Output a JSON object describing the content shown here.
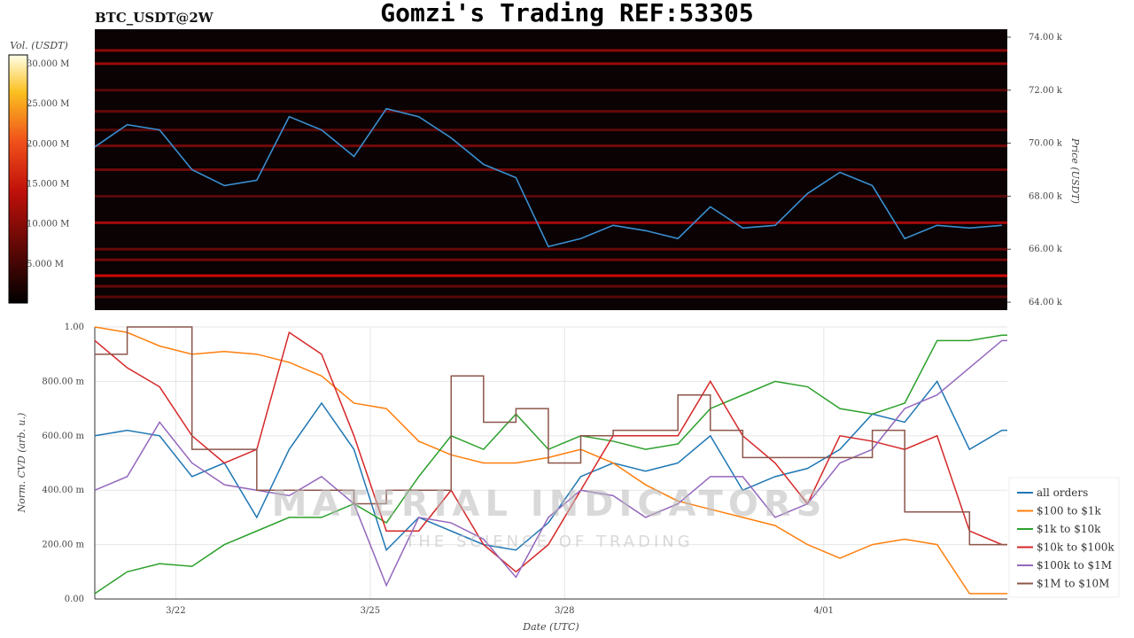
{
  "title": "Gomzi's Trading REF:53305",
  "symbol": "BTC_USDT@2W",
  "watermark": {
    "line1": "MATERIAL INDICATORS",
    "line2": "THE SCIENCE OF TRADING"
  },
  "chart_data": [
    {
      "type": "heatmap",
      "title": "",
      "ylabel": "Price (USDT)",
      "ylim": [
        63.7,
        74.3
      ],
      "y_ticks": [
        "64.00 k",
        "66.00 k",
        "68.00 k",
        "70.00 k",
        "72.00 k",
        "74.00 k"
      ],
      "y_tick_values": [
        64,
        66,
        68,
        70,
        72,
        74
      ],
      "colorbar": {
        "label": "Vol. (USDT)",
        "range": [
          0,
          31
        ],
        "ticks": [
          "5.000 M",
          "10.000 M",
          "15.000 M",
          "20.000 M",
          "25.000 M",
          "30.000 M"
        ],
        "tick_values": [
          5,
          10,
          15,
          20,
          25,
          30
        ]
      },
      "bands": [
        {
          "price": 73.5,
          "volume_M": 8
        },
        {
          "price": 73.0,
          "volume_M": 9
        },
        {
          "price": 72.0,
          "volume_M": 4
        },
        {
          "price": 71.2,
          "volume_M": 5
        },
        {
          "price": 70.5,
          "volume_M": 4
        },
        {
          "price": 69.9,
          "volume_M": 6
        },
        {
          "price": 69.0,
          "volume_M": 6
        },
        {
          "price": 68.0,
          "volume_M": 4
        },
        {
          "price": 67.0,
          "volume_M": 10
        },
        {
          "price": 66.0,
          "volume_M": 5
        },
        {
          "price": 65.6,
          "volume_M": 6
        },
        {
          "price": 65.0,
          "volume_M": 13
        },
        {
          "price": 64.6,
          "volume_M": 5
        },
        {
          "price": 64.2,
          "volume_M": 4
        }
      ],
      "price_series": {
        "x": [
          "2024-03-20 18:00",
          "2024-03-21 06:00",
          "2024-03-21 18:00",
          "2024-03-22 06:00",
          "2024-03-22 18:00",
          "2024-03-23 06:00",
          "2024-03-23 18:00",
          "2024-03-24 06:00",
          "2024-03-24 18:00",
          "2024-03-25 06:00",
          "2024-03-25 18:00",
          "2024-03-26 06:00",
          "2024-03-26 18:00",
          "2024-03-27 06:00",
          "2024-03-27 18:00",
          "2024-03-28 06:00",
          "2024-03-28 18:00",
          "2024-03-29 06:00",
          "2024-03-29 18:00",
          "2024-03-30 06:00",
          "2024-03-30 18:00",
          "2024-03-31 06:00",
          "2024-03-31 18:00",
          "2024-04-01 06:00",
          "2024-04-01 18:00",
          "2024-04-02 06:00",
          "2024-04-02 18:00",
          "2024-04-03 06:00",
          "2024-04-03 18:00"
        ],
        "values": [
          69.86,
          70.7,
          70.5,
          69.0,
          68.4,
          68.6,
          71.0,
          70.5,
          69.5,
          71.3,
          71.0,
          70.2,
          69.2,
          68.7,
          66.1,
          66.4,
          66.9,
          66.7,
          66.4,
          67.6,
          66.8,
          66.9,
          68.1,
          68.9,
          68.4,
          66.4,
          66.9,
          66.8,
          66.9
        ],
        "color": "#3a8fd0"
      }
    },
    {
      "type": "line",
      "title": "",
      "xlabel": "Date (UTC)",
      "ylabel": "Norm. CVD (arb. u.)",
      "ylim": [
        0,
        1
      ],
      "y_ticks": [
        "0.00",
        "200.00 m",
        "400.00 m",
        "600.00 m",
        "800.00 m",
        "1.00"
      ],
      "y_tick_values": [
        0,
        0.2,
        0.4,
        0.6,
        0.8,
        1.0
      ],
      "x_ticks": [
        "3/22",
        "3/25",
        "3/28",
        "4/01"
      ],
      "x_tick_values": [
        "2024-03-22 00:00",
        "2024-03-25 00:00",
        "2024-03-28 00:00",
        "2024-04-01 00:00"
      ],
      "xlim": [
        "2024-03-20 18:00",
        "2024-04-03 20:00"
      ],
      "grid": true,
      "legend": "bottom-right",
      "x": [
        "2024-03-20 18:00",
        "2024-03-21 06:00",
        "2024-03-21 18:00",
        "2024-03-22 06:00",
        "2024-03-22 18:00",
        "2024-03-23 06:00",
        "2024-03-23 18:00",
        "2024-03-24 06:00",
        "2024-03-24 18:00",
        "2024-03-25 06:00",
        "2024-03-25 18:00",
        "2024-03-26 06:00",
        "2024-03-26 18:00",
        "2024-03-27 06:00",
        "2024-03-27 18:00",
        "2024-03-28 06:00",
        "2024-03-28 18:00",
        "2024-03-29 06:00",
        "2024-03-29 18:00",
        "2024-03-30 06:00",
        "2024-03-30 18:00",
        "2024-03-31 06:00",
        "2024-03-31 18:00",
        "2024-04-01 06:00",
        "2024-04-01 18:00",
        "2024-04-02 06:00",
        "2024-04-02 18:00",
        "2024-04-03 06:00",
        "2024-04-03 18:00"
      ],
      "series": [
        {
          "name": "all orders",
          "color": "#1f77b4",
          "values": [
            0.6,
            0.62,
            0.6,
            0.45,
            0.5,
            0.3,
            0.55,
            0.72,
            0.55,
            0.18,
            0.3,
            0.25,
            0.2,
            0.18,
            0.28,
            0.45,
            0.5,
            0.47,
            0.5,
            0.6,
            0.4,
            0.45,
            0.48,
            0.55,
            0.68,
            0.65,
            0.8,
            0.55,
            0.62
          ]
        },
        {
          "name": "$100 to $1k",
          "color": "#ff7f0e",
          "values": [
            1.0,
            0.98,
            0.93,
            0.9,
            0.91,
            0.9,
            0.87,
            0.82,
            0.72,
            0.7,
            0.58,
            0.53,
            0.5,
            0.5,
            0.52,
            0.55,
            0.5,
            0.42,
            0.36,
            0.33,
            0.3,
            0.27,
            0.2,
            0.15,
            0.2,
            0.22,
            0.2,
            0.02,
            0.02
          ]
        },
        {
          "name": "$1k to $10k",
          "color": "#2ca02c",
          "values": [
            0.02,
            0.1,
            0.13,
            0.12,
            0.2,
            0.25,
            0.3,
            0.3,
            0.35,
            0.28,
            0.45,
            0.6,
            0.55,
            0.68,
            0.55,
            0.6,
            0.58,
            0.55,
            0.57,
            0.7,
            0.75,
            0.8,
            0.78,
            0.7,
            0.68,
            0.72,
            0.95,
            0.95,
            0.97
          ]
        },
        {
          "name": "$10k to $100k",
          "color": "#d62728",
          "values": [
            0.95,
            0.85,
            0.78,
            0.6,
            0.5,
            0.55,
            0.98,
            0.9,
            0.6,
            0.25,
            0.25,
            0.4,
            0.2,
            0.1,
            0.2,
            0.4,
            0.6,
            0.6,
            0.6,
            0.8,
            0.6,
            0.5,
            0.35,
            0.6,
            0.58,
            0.55,
            0.6,
            0.25,
            0.2
          ]
        },
        {
          "name": "$100k to $1M",
          "color": "#9467bd",
          "values": [
            0.4,
            0.45,
            0.65,
            0.5,
            0.42,
            0.4,
            0.38,
            0.45,
            0.35,
            0.05,
            0.3,
            0.28,
            0.22,
            0.08,
            0.3,
            0.4,
            0.38,
            0.3,
            0.35,
            0.45,
            0.45,
            0.3,
            0.35,
            0.5,
            0.55,
            0.7,
            0.75,
            0.85,
            0.95
          ]
        },
        {
          "name": "$1M to $10M",
          "color": "#8c564b",
          "step": true,
          "values": [
            0.9,
            1.0,
            1.0,
            0.55,
            0.55,
            0.4,
            0.4,
            0.4,
            0.35,
            0.4,
            0.4,
            0.82,
            0.65,
            0.7,
            0.5,
            0.6,
            0.62,
            0.62,
            0.75,
            0.62,
            0.52,
            0.52,
            0.52,
            0.52,
            0.62,
            0.32,
            0.32,
            0.2,
            0.2
          ]
        }
      ]
    }
  ]
}
